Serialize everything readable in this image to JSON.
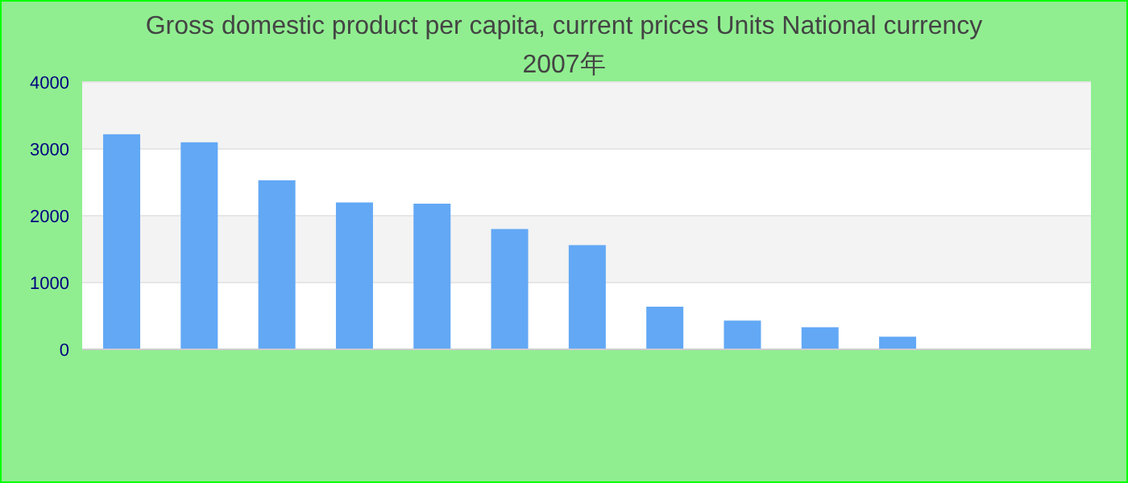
{
  "chart_data": {
    "type": "bar",
    "title": "Gross domestic product per capita, current prices Units National currency",
    "subtitle": "2007年",
    "categories": [
      null,
      null,
      null,
      null,
      null,
      null,
      null,
      null,
      null,
      null,
      null,
      null,
      null
    ],
    "values": [
      3220,
      3100,
      2530,
      2200,
      2180,
      1800,
      1560,
      640,
      430,
      330,
      190,
      0,
      0
    ],
    "color": "#62a8f5",
    "ylim": [
      0,
      4000
    ],
    "yticks": [
      0,
      1000,
      2000,
      3000,
      4000
    ],
    "grid": "y"
  }
}
